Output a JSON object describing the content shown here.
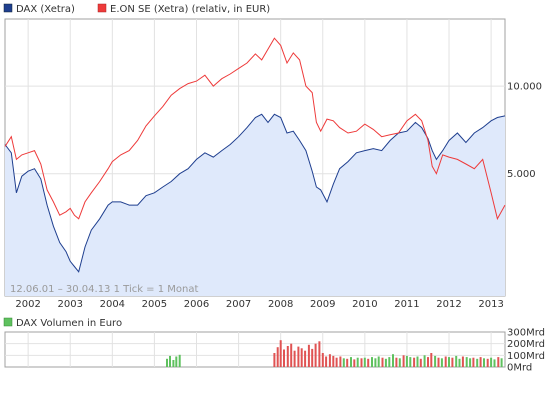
{
  "chart_data": [
    {
      "type": "line",
      "legend": [
        {
          "label": "DAX (Xetra)",
          "color": "#1f3f8f"
        },
        {
          "label": "E.ON SE (Xetra) (relativ, in EUR)",
          "color": "#ee3a3a"
        }
      ],
      "y_scale": "log",
      "ylim": [
        1900,
        17000
      ],
      "yticks": [
        {
          "value": 5000,
          "label": "5.000"
        },
        {
          "value": 10000,
          "label": "10.000"
        }
      ],
      "xlim": [
        2001.45,
        2013.33
      ],
      "xticks": [
        "2002",
        "2003",
        "2004",
        "2005",
        "2006",
        "2007",
        "2008",
        "2009",
        "2010",
        "2011",
        "2012",
        "2013"
      ],
      "xtick_values": [
        2002,
        2003,
        2004,
        2005,
        2006,
        2007,
        2008,
        2009,
        2010,
        2011,
        2012,
        2013
      ],
      "grid": true,
      "range_note": "12.06.01 – 30.04.13   1 Tick = 1 Monat",
      "x": [
        2001.45,
        2001.6,
        2001.72,
        2001.85,
        2002.0,
        2002.15,
        2002.3,
        2002.45,
        2002.6,
        2002.75,
        2002.9,
        2003.0,
        2003.1,
        2003.2,
        2003.35,
        2003.5,
        2003.7,
        2003.9,
        2004.0,
        2004.2,
        2004.4,
        2004.6,
        2004.8,
        2005.0,
        2005.2,
        2005.4,
        2005.6,
        2005.8,
        2006.0,
        2006.2,
        2006.4,
        2006.6,
        2006.8,
        2007.0,
        2007.2,
        2007.4,
        2007.55,
        2007.7,
        2007.85,
        2008.0,
        2008.15,
        2008.3,
        2008.45,
        2008.6,
        2008.75,
        2008.85,
        2008.95,
        2009.1,
        2009.25,
        2009.4,
        2009.6,
        2009.8,
        2010.0,
        2010.2,
        2010.4,
        2010.6,
        2010.8,
        2011.0,
        2011.2,
        2011.35,
        2011.5,
        2011.6,
        2011.7,
        2011.85,
        2012.0,
        2012.2,
        2012.4,
        2012.6,
        2012.8,
        2013.0,
        2013.15,
        2013.33
      ],
      "series": [
        {
          "name": "DAX (Xetra)",
          "color": "#1f3f8f",
          "fill": "#dfe9fb",
          "values": [
            6300,
            5900,
            4300,
            4900,
            5100,
            5200,
            4800,
            3900,
            3300,
            2900,
            2700,
            2500,
            2400,
            2300,
            2800,
            3200,
            3500,
            3900,
            4000,
            4000,
            3900,
            3900,
            4200,
            4300,
            4500,
            4700,
            5000,
            5200,
            5600,
            5900,
            5700,
            6000,
            6300,
            6700,
            7200,
            7800,
            8000,
            7500,
            8000,
            7800,
            6900,
            7000,
            6500,
            6000,
            5100,
            4500,
            4400,
            4000,
            4600,
            5200,
            5500,
            5900,
            6000,
            6100,
            6000,
            6500,
            6900,
            7000,
            7500,
            7200,
            6600,
            6000,
            5600,
            6000,
            6500,
            6900,
            6400,
            6900,
            7200,
            7600,
            7800,
            7900
          ]
        },
        {
          "name": "E.ON SE (Xetra)",
          "color": "#ee3a3a",
          "values": [
            6200,
            6700,
            5600,
            5800,
            5900,
            6000,
            5400,
            4400,
            4000,
            3600,
            3700,
            3800,
            3600,
            3500,
            4000,
            4300,
            4700,
            5200,
            5500,
            5800,
            6000,
            6500,
            7300,
            7900,
            8500,
            9300,
            9800,
            10200,
            10400,
            10900,
            10000,
            10600,
            11000,
            11500,
            12000,
            12900,
            12300,
            13400,
            14600,
            13800,
            12000,
            13000,
            12300,
            10000,
            9500,
            7500,
            7000,
            7700,
            7600,
            7200,
            6900,
            7000,
            7400,
            7100,
            6700,
            6800,
            6900,
            7600,
            8000,
            7600,
            6500,
            5300,
            5000,
            5800,
            5700,
            5600,
            5400,
            5200,
            5600,
            4300,
            3500,
            3900
          ]
        }
      ]
    },
    {
      "type": "bar",
      "legend": [
        {
          "label": "DAX Volumen in Euro",
          "color": "#5fc15f"
        }
      ],
      "yticks": [
        {
          "value": 0,
          "label": "0Mrd"
        },
        {
          "value": 100,
          "label": "100Mrd"
        },
        {
          "value": 200,
          "label": "200Mrd"
        },
        {
          "value": 300,
          "label": "300Mrd"
        }
      ],
      "ylim": [
        0,
        300
      ],
      "colors": {
        "green": "#5fc15f",
        "red": "#e05353"
      },
      "x": [
        2005.3,
        2005.37,
        2005.45,
        2005.52,
        2005.6,
        2007.85,
        2007.93,
        2008.0,
        2008.08,
        2008.17,
        2008.25,
        2008.33,
        2008.42,
        2008.5,
        2008.58,
        2008.67,
        2008.75,
        2008.83,
        2008.92,
        2009.0,
        2009.08,
        2009.17,
        2009.25,
        2009.33,
        2009.42,
        2009.5,
        2009.58,
        2009.67,
        2009.75,
        2009.83,
        2009.92,
        2010.0,
        2010.08,
        2010.17,
        2010.25,
        2010.33,
        2010.42,
        2010.5,
        2010.58,
        2010.67,
        2010.75,
        2010.83,
        2010.92,
        2011.0,
        2011.08,
        2011.17,
        2011.25,
        2011.33,
        2011.42,
        2011.5,
        2011.58,
        2011.67,
        2011.75,
        2011.83,
        2011.92,
        2012.0,
        2012.08,
        2012.17,
        2012.25,
        2012.33,
        2012.42,
        2012.5,
        2012.58,
        2012.67,
        2012.75,
        2012.83,
        2012.92,
        2013.0,
        2013.08,
        2013.17,
        2013.25
      ],
      "values": [
        70,
        95,
        60,
        90,
        105,
        120,
        170,
        230,
        150,
        180,
        200,
        140,
        175,
        160,
        140,
        190,
        155,
        200,
        220,
        120,
        90,
        110,
        95,
        80,
        90,
        75,
        70,
        85,
        65,
        80,
        75,
        80,
        70,
        85,
        75,
        90,
        80,
        70,
        85,
        110,
        80,
        75,
        100,
        95,
        85,
        80,
        90,
        70,
        100,
        85,
        120,
        95,
        80,
        75,
        90,
        85,
        80,
        95,
        70,
        90,
        85,
        75,
        80,
        70,
        85,
        75,
        70,
        80,
        65,
        85,
        75
      ],
      "bar_color": [
        "green",
        "green",
        "green",
        "green",
        "green",
        "red",
        "red",
        "red",
        "red",
        "red",
        "red",
        "red",
        "red",
        "red",
        "red",
        "red",
        "red",
        "red",
        "red",
        "red",
        "red",
        "red",
        "red",
        "red",
        "red",
        "green",
        "red",
        "green",
        "red",
        "green",
        "red",
        "green",
        "red",
        "green",
        "green",
        "green",
        "red",
        "green",
        "green",
        "green",
        "red",
        "green",
        "red",
        "green",
        "green",
        "red",
        "green",
        "red",
        "green",
        "red",
        "red",
        "green",
        "red",
        "green",
        "red",
        "green",
        "red",
        "green",
        "green",
        "red",
        "green",
        "green",
        "red",
        "green",
        "red",
        "green",
        "red",
        "green",
        "green",
        "red",
        "green"
      ]
    }
  ]
}
